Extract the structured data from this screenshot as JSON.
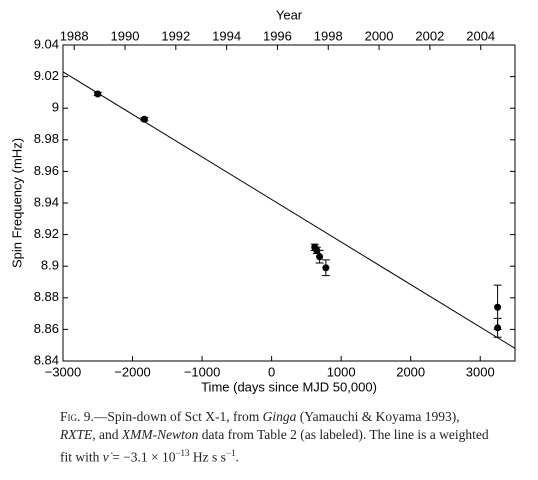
{
  "chart_data": {
    "type": "scatter",
    "xlabel": "Time (days since MJD 50,000)",
    "ylabel": "Spin Frequency (mHz)",
    "x2label": "Year",
    "xlim": [
      -3000,
      3500
    ],
    "xticks": [
      {
        "value": -3000,
        "label": "−3000"
      },
      {
        "value": -2000,
        "label": "−2000"
      },
      {
        "value": -1000,
        "label": "−1000"
      },
      0,
      1000,
      2000,
      3000
    ],
    "x2lim": [
      1987.56,
      2005.35
    ],
    "x2ticks": [
      1988,
      1990,
      1992,
      1994,
      1996,
      1998,
      2000,
      2002,
      2004
    ],
    "ylim": [
      8.84,
      9.04
    ],
    "yticks": [
      8.84,
      8.86,
      8.88,
      8.9,
      8.92,
      8.94,
      8.96,
      8.98,
      9,
      9.02,
      9.04
    ],
    "color": "#000000",
    "x": [
      -2500,
      -1830,
      620,
      650,
      690,
      780,
      3250,
      3250
    ],
    "values": [
      9.009,
      8.993,
      8.912,
      8.91,
      8.906,
      8.899,
      8.874,
      8.861
    ],
    "errors": [
      0.001,
      0.001,
      0.002,
      0.002,
      0.004,
      0.005,
      0.014,
      0.006
    ],
    "fit_line": {
      "x": [
        -3000,
        3500
      ],
      "values": [
        9.023,
        8.848
      ]
    }
  },
  "caption": {
    "lines": [
      [
        {
          "text": "Fig. 9.",
          "smallcaps": true
        },
        {
          "text": "—Spin-down of Sct X-1, from "
        },
        {
          "text": "Ginga",
          "italic": true
        },
        {
          "text": " (Yamauchi & Koyama 1993),"
        }
      ],
      [
        {
          "text": "RXTE",
          "italic": true
        },
        {
          "text": ", and "
        },
        {
          "text": "XMM-Newton",
          "italic": true
        },
        {
          "text": " data from Table 2 (as labeled). The line is a weighted"
        }
      ],
      [
        {
          "text": "fit with "
        },
        {
          "text": "ν̇",
          "italic": true
        },
        {
          "text": " = −3.1 × 10"
        },
        {
          "text": "−13",
          "sup": true
        },
        {
          "text": " Hz s s"
        },
        {
          "text": "−1",
          "sup": true
        },
        {
          "text": "."
        }
      ]
    ]
  }
}
